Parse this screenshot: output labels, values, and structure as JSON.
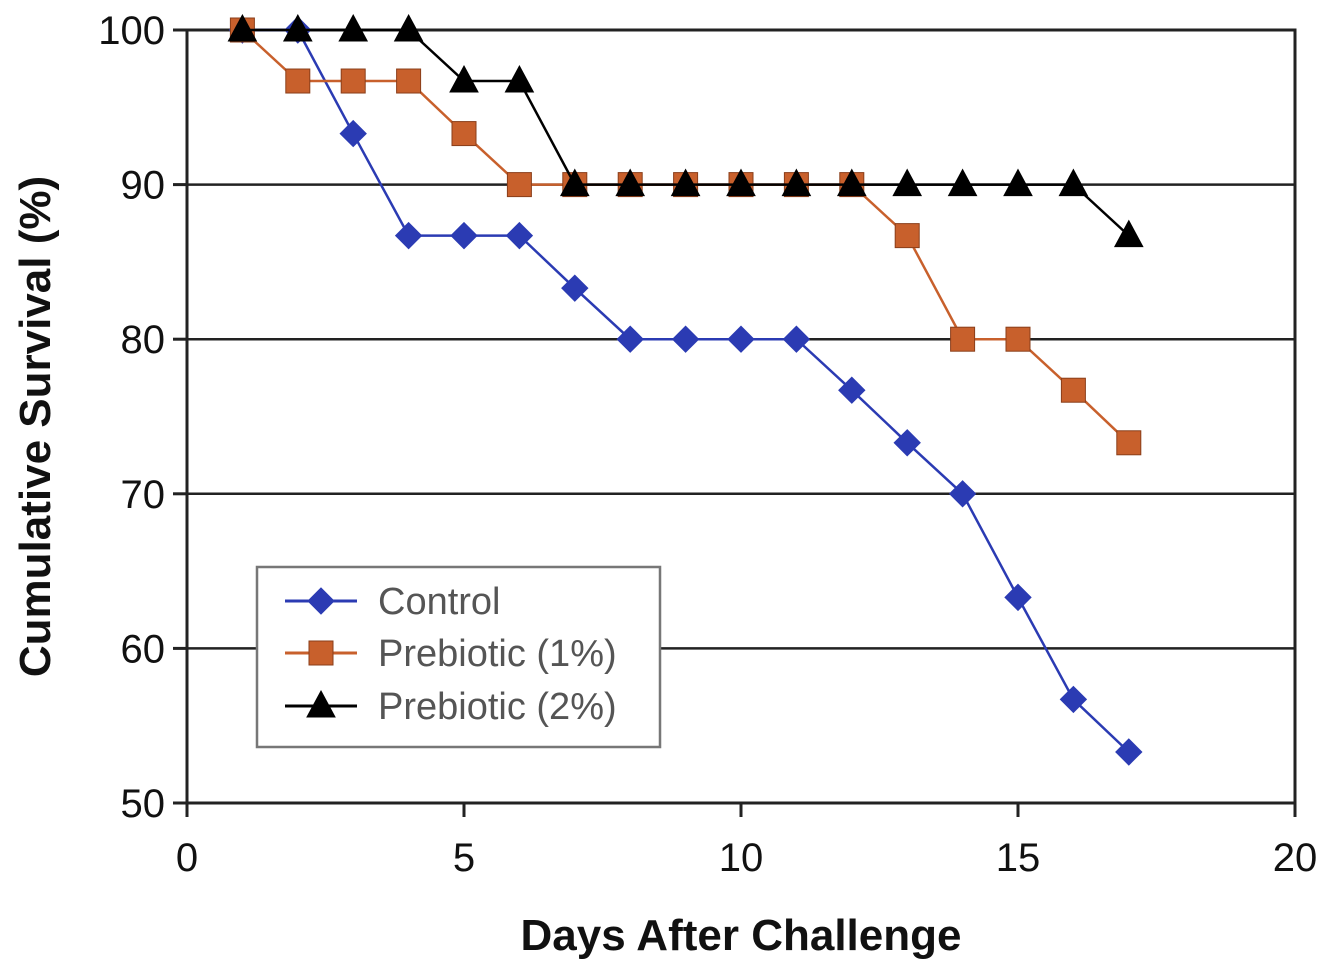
{
  "chart_data": {
    "type": "line",
    "title": "",
    "xlabel": "Days After Challenge",
    "ylabel": "Cumulative Survival (%)",
    "xlim": [
      0,
      20
    ],
    "ylim": [
      50,
      100
    ],
    "xticks": [
      0,
      5,
      10,
      15,
      20
    ],
    "yticks": [
      50,
      60,
      70,
      80,
      90,
      100
    ],
    "grid": {
      "horizontal": true,
      "vertical": false
    },
    "legend_position": "lower-left",
    "x": [
      1,
      2,
      3,
      4,
      5,
      6,
      7,
      8,
      9,
      10,
      11,
      12,
      13,
      14,
      15,
      16,
      17
    ],
    "series": [
      {
        "name": "Control",
        "marker": "diamond",
        "color": "#2b3bb3",
        "values": [
          100,
          100,
          93.3,
          86.7,
          86.7,
          86.7,
          83.3,
          80,
          80,
          80,
          80,
          76.7,
          73.3,
          70,
          63.3,
          56.7,
          53.3
        ]
      },
      {
        "name": "Prebiotic (1%)",
        "marker": "square",
        "color": "#c8602c",
        "values": [
          100,
          96.7,
          96.7,
          96.7,
          93.3,
          90,
          90,
          90,
          90,
          90,
          90,
          90,
          86.7,
          80,
          80,
          76.7,
          73.3
        ]
      },
      {
        "name": "Prebiotic (2%)",
        "marker": "triangle",
        "color": "#000000",
        "values": [
          100,
          100,
          100,
          100,
          96.7,
          96.7,
          90,
          90,
          90,
          90,
          90,
          90,
          90,
          90,
          90,
          90,
          86.7
        ]
      }
    ]
  }
}
